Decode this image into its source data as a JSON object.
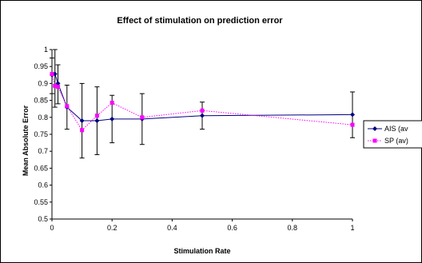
{
  "chart_data": {
    "type": "line",
    "title": "Effect of stimulation on prediction error",
    "xlabel": "Stimulation Rate",
    "ylabel": "Mean Absolute Error",
    "xlim": [
      0,
      1
    ],
    "ylim": [
      0.5,
      1
    ],
    "xticks": [
      "0",
      "0.2",
      "0.4",
      "0.6",
      "0.8",
      "1"
    ],
    "yticks": [
      "0.5",
      "0.55",
      "0.6",
      "0.65",
      "0.7",
      "0.75",
      "0.8",
      "0.85",
      "0.9",
      "0.95",
      "1"
    ],
    "grid": false,
    "legend_position": "right",
    "series": [
      {
        "name": "AIS (av",
        "color": "#000080",
        "style": "solid",
        "marker": "diamond",
        "x": [
          0,
          0.01,
          0.02,
          0.05,
          0.1,
          0.15,
          0.2,
          0.3,
          0.5,
          1
        ],
        "y": [
          0.925,
          0.928,
          0.9,
          0.83,
          0.79,
          0.79,
          0.795,
          0.795,
          0.805,
          0.808
        ],
        "err_low": [
          0.87,
          0.83,
          0.84,
          0.765,
          0.68,
          0.69,
          0.725,
          0.72,
          0.765,
          0.74
        ],
        "err_high": [
          0.975,
          1.0,
          0.955,
          0.895,
          0.9,
          0.89,
          0.865,
          0.87,
          0.845,
          0.875
        ]
      },
      {
        "name": "SP (av)",
        "color": "#FF00FF",
        "style": "dotted",
        "marker": "square",
        "x": [
          0,
          0.01,
          0.02,
          0.05,
          0.1,
          0.15,
          0.2,
          0.3,
          0.5,
          1
        ],
        "y": [
          0.928,
          0.893,
          0.89,
          0.833,
          0.762,
          0.805,
          0.843,
          0.8,
          0.82,
          0.778
        ],
        "err_low": [],
        "err_high": []
      }
    ]
  }
}
